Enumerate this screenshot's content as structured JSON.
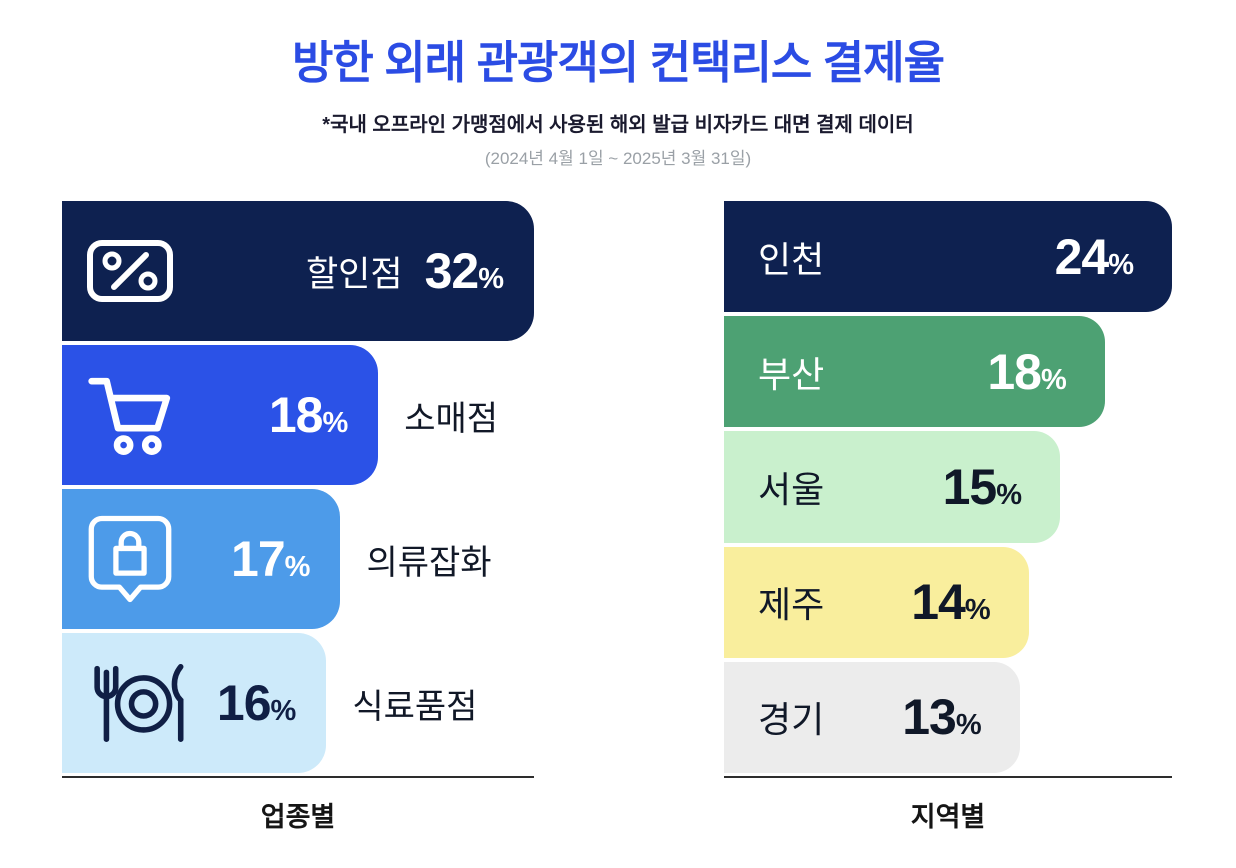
{
  "header": {
    "title": "방한 외래 관광객의 컨택리스 결제율",
    "subtitle": "*국내 오프라인 가맹점에서 사용된 해외 발급 비자카드 대면 결제 데이터",
    "date_range": "(2024년 4월 1일 ~ 2025년 3월 31일)"
  },
  "chart_data": [
    {
      "type": "bar",
      "orientation": "horizontal",
      "title": "업종별",
      "unit": "%",
      "categories": [
        "할인점",
        "소매점",
        "의류잡화",
        "식료품점"
      ],
      "values": [
        32,
        18,
        17,
        16
      ],
      "legend": "none",
      "grid": false,
      "bars": [
        {
          "label": "할인점",
          "value": 32,
          "icon": "percent-card-icon",
          "color": "#0e2150",
          "text_color": "#ffffff",
          "width_pct": 100,
          "label_inside": true
        },
        {
          "label": "소매점",
          "value": 18,
          "icon": "shopping-cart-icon",
          "color": "#2b52e7",
          "text_color": "#ffffff",
          "width_pct": 67,
          "label_inside": false
        },
        {
          "label": "의류잡화",
          "value": 17,
          "icon": "shopping-bag-icon",
          "color": "#4d9be9",
          "text_color": "#ffffff",
          "width_pct": 59,
          "label_inside": false
        },
        {
          "label": "식료품점",
          "value": 16,
          "icon": "dining-icon",
          "color": "#cdeafa",
          "text_color": "#101f45",
          "width_pct": 56,
          "label_inside": false
        }
      ]
    },
    {
      "type": "bar",
      "orientation": "horizontal",
      "title": "지역별",
      "unit": "%",
      "categories": [
        "인천",
        "부산",
        "서울",
        "제주",
        "경기"
      ],
      "values": [
        24,
        18,
        15,
        14,
        13
      ],
      "legend": "none",
      "grid": false,
      "bars": [
        {
          "label": "인천",
          "value": 24,
          "color": "#0e2150",
          "text_color": "#ffffff",
          "width_pct": 100
        },
        {
          "label": "부산",
          "value": 18,
          "color": "#4da173",
          "text_color": "#ffffff",
          "width_pct": 85
        },
        {
          "label": "서울",
          "value": 15,
          "color": "#c9f0cd",
          "text_color": "#101828",
          "width_pct": 75
        },
        {
          "label": "제주",
          "value": 14,
          "color": "#f9ee9d",
          "text_color": "#101828",
          "width_pct": 68
        },
        {
          "label": "경기",
          "value": 13,
          "color": "#ececec",
          "text_color": "#101828",
          "width_pct": 66
        }
      ]
    }
  ]
}
